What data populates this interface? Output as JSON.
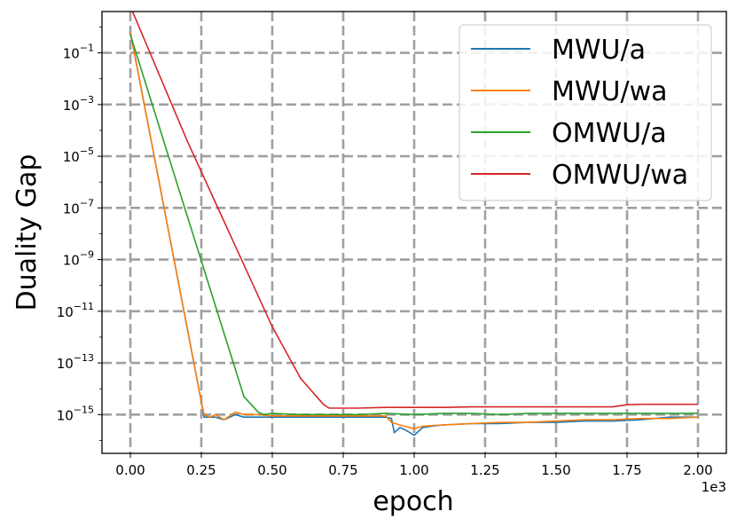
{
  "chart_data": {
    "type": "line",
    "xlabel": "epoch",
    "ylabel": "Duality Gap",
    "x_multiplier_label": "1e3",
    "xlim": [
      -0.1,
      2.1
    ],
    "yscale": "log",
    "ylim_log10": [
      -16.5,
      0.6
    ],
    "grid": true,
    "legend_position": "top-right",
    "x_ticks": [
      0.0,
      0.25,
      0.5,
      0.75,
      1.0,
      1.25,
      1.5,
      1.75,
      2.0
    ],
    "x_tick_labels": [
      "0.00",
      "0.25",
      "0.50",
      "0.75",
      "1.00",
      "1.25",
      "1.50",
      "1.75",
      "2.00"
    ],
    "y_ticks_log10": [
      -1,
      -3,
      -5,
      -7,
      -9,
      -11,
      -13,
      -15
    ],
    "y_tick_labels": [
      {
        "base": "10",
        "exp": "−1"
      },
      {
        "base": "10",
        "exp": "−3"
      },
      {
        "base": "10",
        "exp": "−5"
      },
      {
        "base": "10",
        "exp": "−7"
      },
      {
        "base": "10",
        "exp": "−9"
      },
      {
        "base": "10",
        "exp": "−11"
      },
      {
        "base": "10",
        "exp": "−13"
      },
      {
        "base": "10",
        "exp": "−15"
      }
    ],
    "series": [
      {
        "name": "MWU/a",
        "color": "#1f77b4",
        "x": [
          0.0,
          0.25,
          0.26,
          0.28,
          0.3,
          0.33,
          0.37,
          0.4,
          0.45,
          0.5,
          0.6,
          0.7,
          0.8,
          0.9,
          0.92,
          0.93,
          0.95,
          0.97,
          1.0,
          1.03,
          1.06,
          1.1,
          1.2,
          1.3,
          1.4,
          1.5,
          1.6,
          1.7,
          1.8,
          1.9,
          2.0
        ],
        "log10y": [
          -0.2,
          -14.5,
          -15.1,
          -15.1,
          -15.1,
          -15.2,
          -15.0,
          -15.1,
          -15.1,
          -15.1,
          -15.1,
          -15.1,
          -15.1,
          -15.1,
          -15.15,
          -15.7,
          -15.5,
          -15.6,
          -15.8,
          -15.5,
          -15.45,
          -15.4,
          -15.35,
          -15.35,
          -15.3,
          -15.3,
          -15.25,
          -15.25,
          -15.2,
          -15.1,
          -15.1
        ]
      },
      {
        "name": "MWU/wa",
        "color": "#ff7f0e",
        "x": [
          0.0,
          0.25,
          0.26,
          0.28,
          0.3,
          0.33,
          0.37,
          0.4,
          0.45,
          0.5,
          0.6,
          0.7,
          0.8,
          0.9,
          0.92,
          0.95,
          1.0,
          1.03,
          1.1,
          1.2,
          1.3,
          1.4,
          1.5,
          1.6,
          1.7,
          1.8,
          1.9,
          2.0
        ],
        "log10y": [
          -0.2,
          -14.5,
          -15.0,
          -15.1,
          -15.0,
          -15.2,
          -14.9,
          -15.0,
          -15.0,
          -15.05,
          -15.05,
          -15.05,
          -15.05,
          -15.05,
          -15.3,
          -15.4,
          -15.55,
          -15.45,
          -15.4,
          -15.35,
          -15.3,
          -15.3,
          -15.25,
          -15.2,
          -15.2,
          -15.15,
          -15.15,
          -15.1
        ]
      },
      {
        "name": "OMWU/a",
        "color": "#2ca02c",
        "x": [
          0.0,
          0.1,
          0.2,
          0.3,
          0.4,
          0.45,
          0.47,
          0.5,
          0.6,
          0.7,
          0.8,
          0.9,
          1.0,
          1.1,
          1.2,
          1.3,
          1.4,
          1.5,
          1.6,
          1.7,
          1.8,
          1.9,
          2.0
        ],
        "log10y": [
          -0.3,
          -3.8,
          -7.3,
          -10.8,
          -14.3,
          -14.9,
          -15.0,
          -14.95,
          -15.0,
          -15.0,
          -15.0,
          -14.95,
          -15.0,
          -14.95,
          -14.95,
          -15.0,
          -14.95,
          -14.95,
          -14.95,
          -14.95,
          -14.95,
          -14.95,
          -14.95
        ]
      },
      {
        "name": "OMWU/wa",
        "color": "#d62728",
        "x": [
          0.0,
          0.1,
          0.2,
          0.3,
          0.4,
          0.5,
          0.6,
          0.68,
          0.7,
          0.75,
          0.8,
          0.9,
          1.0,
          1.1,
          1.2,
          1.3,
          1.4,
          1.5,
          1.6,
          1.7,
          1.75,
          1.8,
          1.9,
          2.0
        ],
        "log10y": [
          0.8,
          -1.8,
          -4.4,
          -6.8,
          -9.2,
          -11.6,
          -13.6,
          -14.6,
          -14.75,
          -14.75,
          -14.75,
          -14.72,
          -14.72,
          -14.72,
          -14.7,
          -14.7,
          -14.7,
          -14.7,
          -14.7,
          -14.7,
          -14.62,
          -14.6,
          -14.6,
          -14.6
        ]
      }
    ]
  }
}
